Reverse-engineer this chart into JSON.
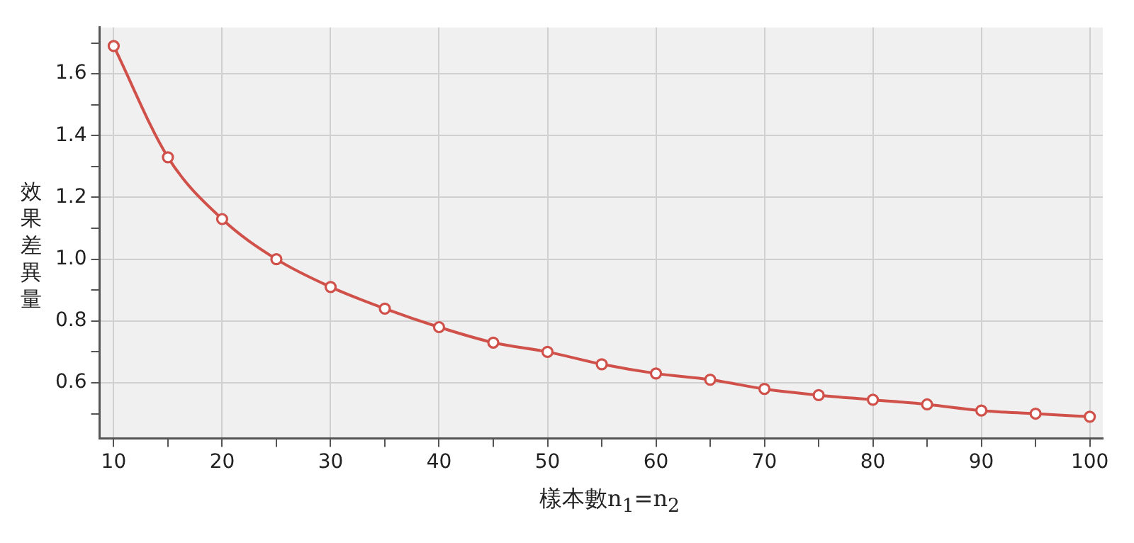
{
  "chart_data": {
    "type": "line",
    "xlabel": "樣本數n$_{1}$=n$_{2}$",
    "ylabel": "效果差異量",
    "x": [
      10,
      15,
      20,
      25,
      30,
      35,
      40,
      45,
      50,
      55,
      60,
      65,
      70,
      75,
      80,
      85,
      90,
      95,
      100
    ],
    "series": [
      {
        "color": "#d0504a",
        "values": [
          1.69,
          1.33,
          1.13,
          1.0,
          0.91,
          0.84,
          0.78,
          0.73,
          0.7,
          0.66,
          0.63,
          0.61,
          0.58,
          0.56,
          0.545,
          0.53,
          0.51,
          0.5,
          0.49
        ]
      }
    ],
    "xlim": [
      8.7,
      101.2
    ],
    "ylim": [
      0.42,
      1.75
    ],
    "xticks": [
      10,
      {
        "value": 15,
        "label": null
      },
      20,
      {
        "value": 25,
        "label": null
      },
      30,
      {
        "value": 35,
        "label": null
      },
      40,
      {
        "value": 45,
        "label": null
      },
      50,
      {
        "value": 55,
        "label": null
      },
      60,
      {
        "value": 65,
        "label": null
      },
      70,
      {
        "value": 75,
        "label": null
      },
      80,
      {
        "value": 85,
        "label": null
      },
      90,
      {
        "value": 95,
        "label": null
      },
      100
    ],
    "yticks": [
      {
        "value": 0.5,
        "label": null
      },
      0.6,
      {
        "value": 0.7,
        "label": null
      },
      0.8,
      {
        "value": 0.9,
        "label": null
      },
      {
        "value": 1.0,
        "label": "1.0"
      },
      {
        "value": 1.1,
        "label": null
      },
      1.2,
      {
        "value": 1.3,
        "label": null
      },
      1.4,
      {
        "value": 1.5,
        "label": null
      },
      1.6,
      {
        "value": 1.7,
        "label": null
      }
    ],
    "grid": true,
    "legend": false,
    "marker": "circle",
    "line_style": "solid"
  }
}
